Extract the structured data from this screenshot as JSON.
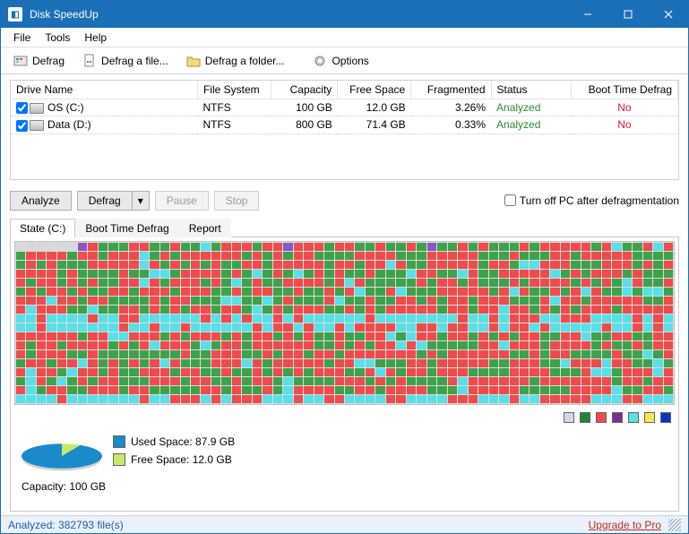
{
  "window": {
    "title": "Disk SpeedUp"
  },
  "menu": [
    "File",
    "Tools",
    "Help"
  ],
  "toolbar": [
    {
      "label": "Defrag",
      "icon": "defrag"
    },
    {
      "label": "Defrag a file...",
      "icon": "file"
    },
    {
      "label": "Defrag a folder...",
      "icon": "folder"
    },
    {
      "label": "Options",
      "icon": "gear"
    }
  ],
  "table": {
    "columns": [
      "Drive Name",
      "File System",
      "Capacity",
      "Free Space",
      "Fragmented",
      "Status",
      "Boot Time Defrag"
    ],
    "rows": [
      {
        "checked": true,
        "name": "OS (C:)",
        "fs": "NTFS",
        "cap": "100 GB",
        "free": "12.0 GB",
        "frag": "3.26%",
        "status": "Analyzed",
        "boot": "No"
      },
      {
        "checked": true,
        "name": "Data (D:)",
        "fs": "NTFS",
        "cap": "800 GB",
        "free": "71.4 GB",
        "frag": "0.33%",
        "status": "Analyzed",
        "boot": "No"
      }
    ]
  },
  "buttons": {
    "analyze": "Analyze",
    "defrag": "Defrag",
    "pause": "Pause",
    "stop": "Stop",
    "turnoff": "Turn off PC after defragmentation"
  },
  "tabs": {
    "state": "State (C:)",
    "boot": "Boot Time Defrag",
    "report": "Report"
  },
  "blockmap": {
    "cols": 64,
    "rows": 18,
    "colors": {
      "0": "#ef4b4b",
      "1": "#3ea24a",
      "2": "#57e0e8",
      "3": "#8a56c4",
      "4": "#d8d8d8"
    },
    "legend": [
      "#cfd8ef",
      "#1e8a2e",
      "#ef4b4b",
      "#7a2e9a",
      "#57e0e8",
      "#f6e94a",
      "#1030c0"
    ]
  },
  "pie": {
    "used_color": "#1a8acb",
    "free_color": "#c8e86a",
    "used_label": "Used Space: 87.9 GB",
    "free_label": "Free Space: 12.0 GB",
    "used_pct": 88,
    "capacity": "Capacity: 100 GB"
  },
  "status": {
    "left": "Analyzed: 382793 file(s)",
    "upgrade": "Upgrade to Pro"
  }
}
